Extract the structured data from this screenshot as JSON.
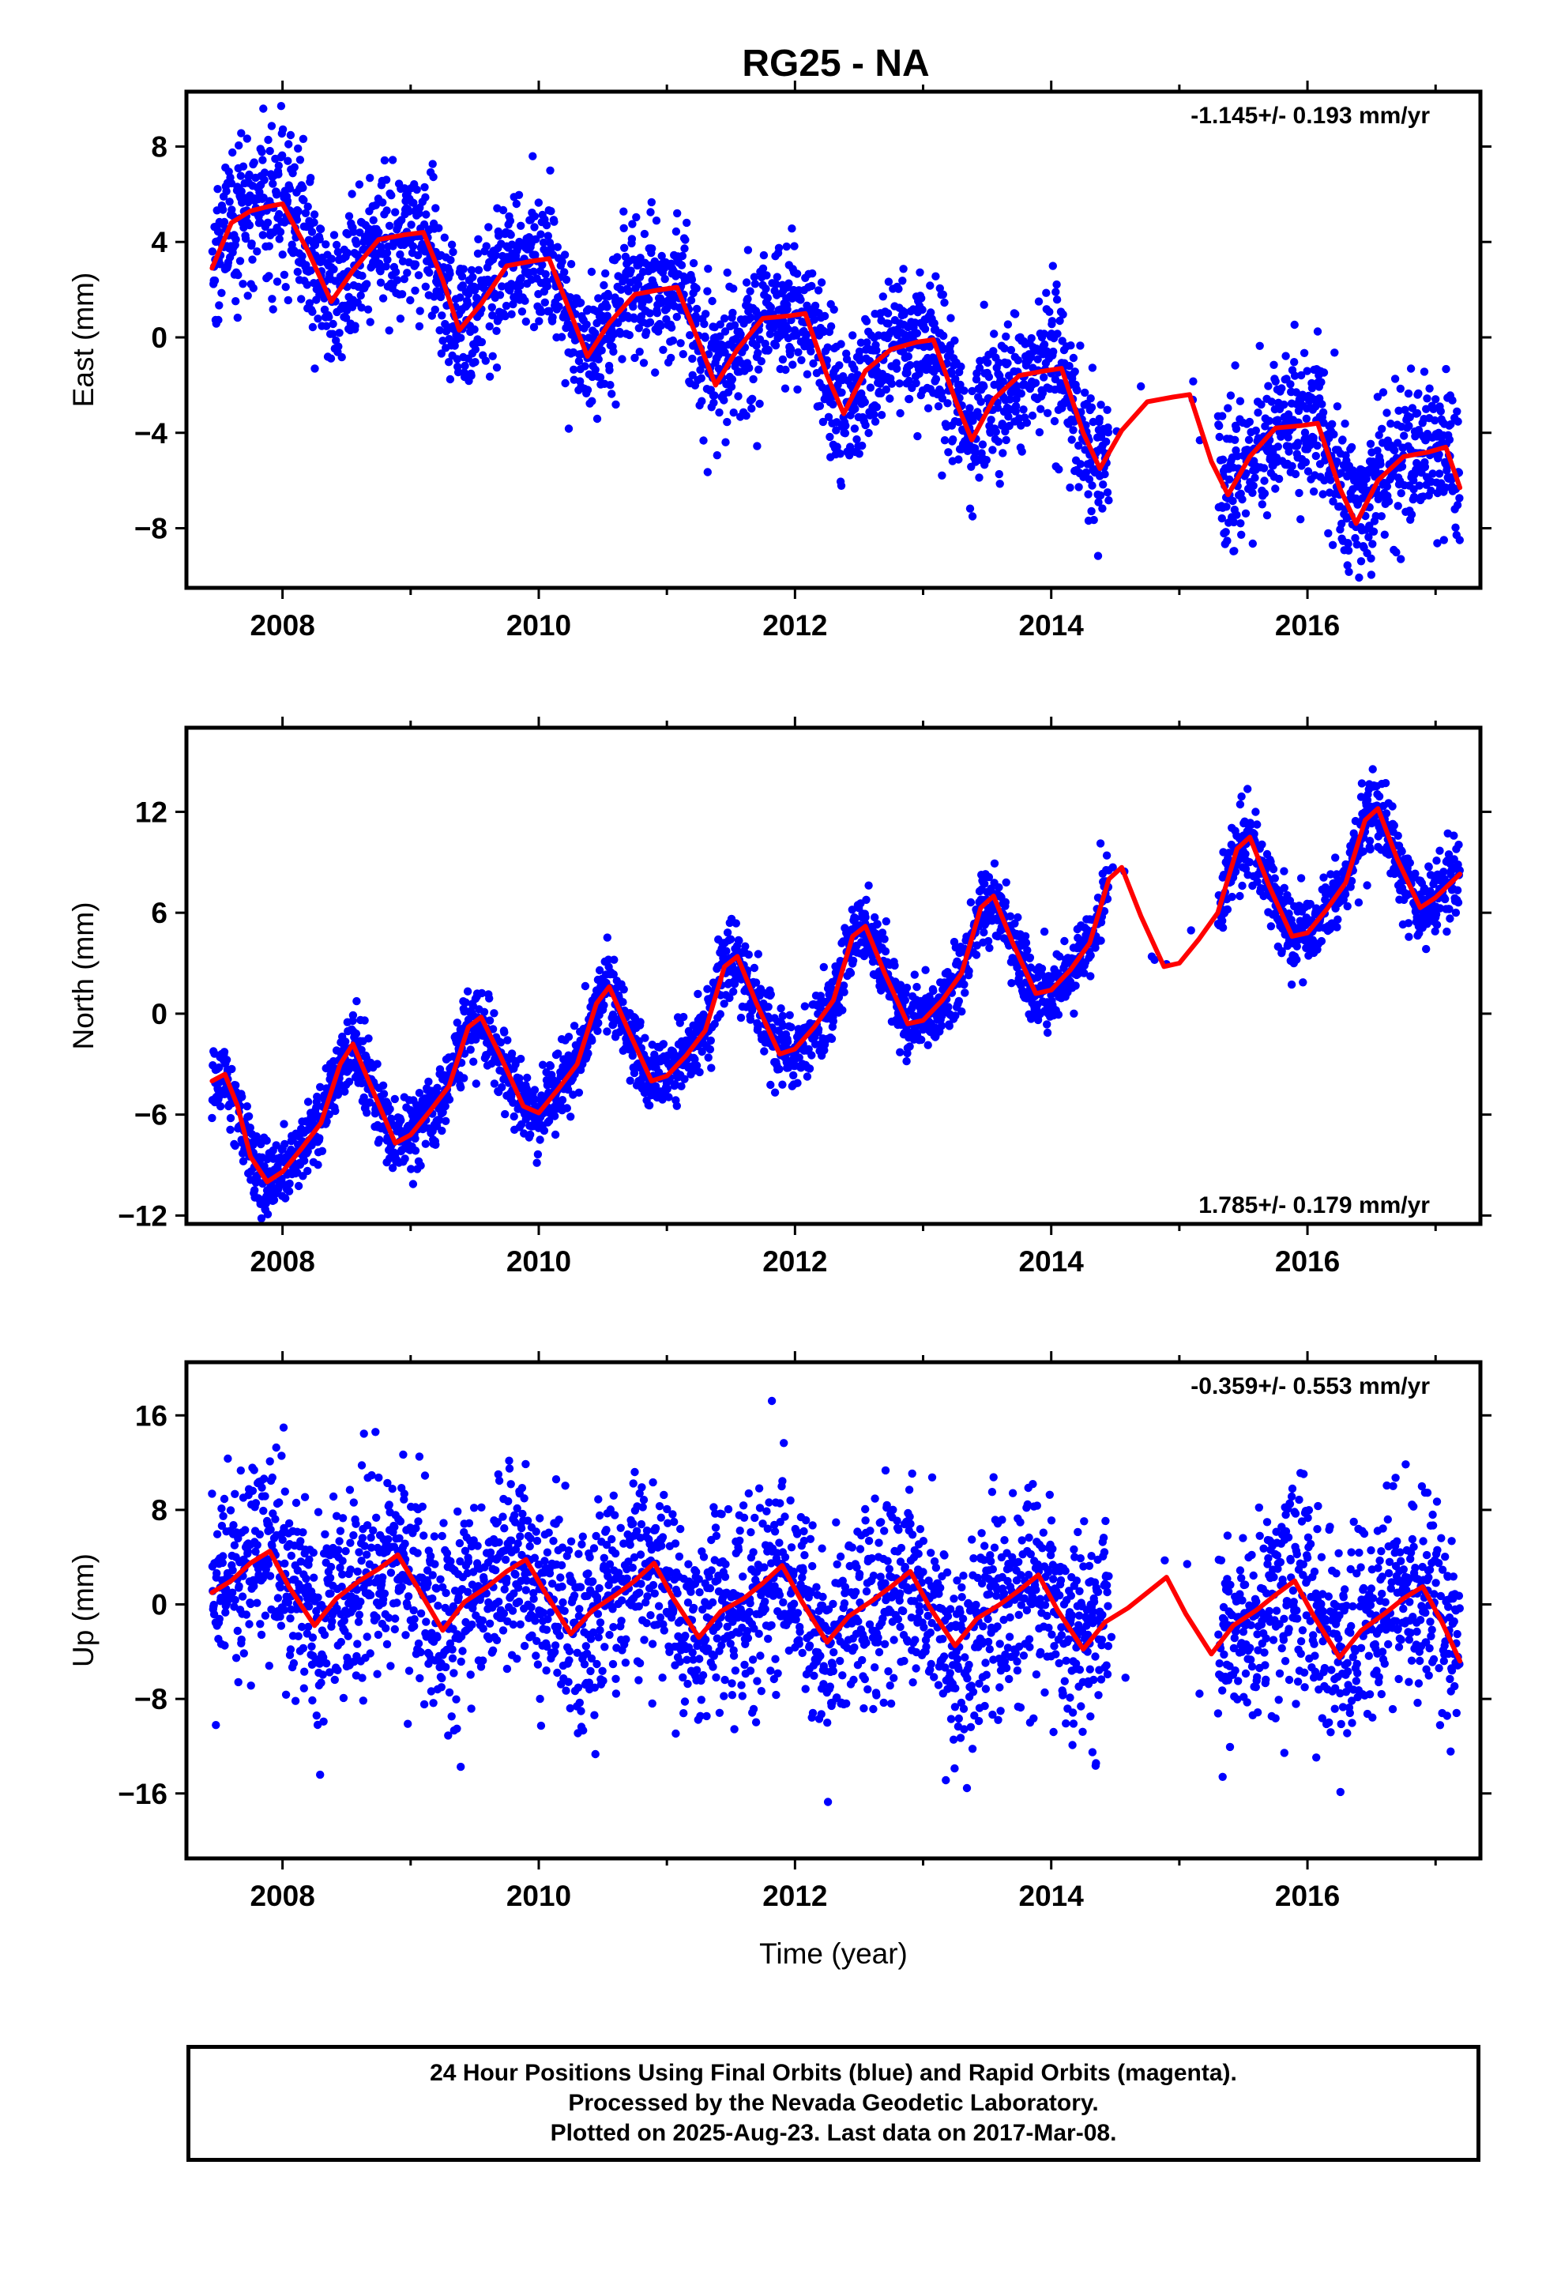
{
  "figure": {
    "title": "RG25 - NA",
    "xlabel": "Time (year)",
    "footer": [
      "24 Hour Positions Using Final Orbits (blue) and Rapid Orbits (magenta).",
      "Processed by the Nevada Geodetic Laboratory.",
      "Plotted on 2025-Aug-23. Last data on 2017-Mar-08."
    ]
  },
  "colors": {
    "points": "#0000ff",
    "model": "#ff0000",
    "frame": "#000000"
  },
  "chart_data": [
    {
      "type": "scatter",
      "component": "east",
      "ylabel": "East (mm)",
      "rate_text": "-1.145+/- 0.193 mm/yr",
      "rate_position": "top-right",
      "xlim": [
        2007.25,
        2017.35
      ],
      "ylim": [
        -10.5,
        10.3
      ],
      "x_ticks": [
        2008,
        2010,
        2012,
        2014,
        2016
      ],
      "x_tick_labels": [
        "2008",
        "2010",
        "2012",
        "2014",
        "2016"
      ],
      "y_ticks": [
        -8,
        -4,
        0,
        4,
        8
      ],
      "y_tick_labels": [
        "−8",
        "−4",
        "0",
        "4",
        "8"
      ],
      "grid": false,
      "data_span": [
        2007.45,
        2017.19
      ],
      "gaps": [
        [
          2014.45,
          2015.3
        ]
      ],
      "series": [
        {
          "role": "model",
          "x": [
            2007.45,
            2007.6,
            2007.75,
            2007.9,
            2008.0,
            2008.2,
            2008.38,
            2008.55,
            2008.75,
            2008.95,
            2009.1,
            2009.25,
            2009.38,
            2009.55,
            2009.75,
            2009.95,
            2010.08,
            2010.25,
            2010.38,
            2010.55,
            2010.75,
            2010.95,
            2011.08,
            2011.25,
            2011.38,
            2011.55,
            2011.75,
            2011.95,
            2012.08,
            2012.25,
            2012.38,
            2012.55,
            2012.75,
            2012.95,
            2013.08,
            2013.25,
            2013.38,
            2013.55,
            2013.75,
            2013.95,
            2014.08,
            2014.25,
            2014.38,
            2014.55,
            2014.75,
            2014.95,
            2015.08,
            2015.25,
            2015.38,
            2015.55,
            2015.75,
            2015.95,
            2016.08,
            2016.25,
            2016.38,
            2016.55,
            2016.75,
            2016.95,
            2017.08,
            2017.19
          ],
          "y": [
            2.9,
            4.8,
            5.3,
            5.5,
            5.6,
            3.6,
            1.5,
            2.8,
            4.1,
            4.3,
            4.4,
            2.4,
            0.3,
            1.4,
            3.0,
            3.2,
            3.3,
            1.0,
            -0.8,
            0.6,
            1.8,
            2.0,
            2.1,
            -0.2,
            -2.0,
            -0.5,
            0.8,
            0.9,
            1.0,
            -1.6,
            -3.2,
            -1.4,
            -0.5,
            -0.2,
            -0.1,
            -2.6,
            -4.3,
            -2.6,
            -1.6,
            -1.4,
            -1.3,
            -4.0,
            -5.5,
            -3.9,
            -2.7,
            -2.5,
            -2.4,
            -5.2,
            -6.6,
            -5.0,
            -3.8,
            -3.7,
            -3.6,
            -6.3,
            -7.8,
            -6.0,
            -5.0,
            -4.8,
            -4.6,
            -6.3
          ]
        },
        {
          "role": "observations",
          "noise_mm": 1.5,
          "spacing_days": 1
        }
      ]
    },
    {
      "type": "scatter",
      "component": "north",
      "ylabel": "North (mm)",
      "rate_text": "1.785+/- 0.179 mm/yr",
      "rate_position": "bottom-right",
      "xlim": [
        2007.25,
        2017.35
      ],
      "ylim": [
        -12.5,
        17
      ],
      "x_ticks": [
        2008,
        2010,
        2012,
        2014,
        2016
      ],
      "x_tick_labels": [
        "2008",
        "2010",
        "2012",
        "2014",
        "2016"
      ],
      "y_ticks": [
        -12,
        -6,
        0,
        6,
        12
      ],
      "y_tick_labels": [
        "−12",
        "−6",
        "0",
        "6",
        "12"
      ],
      "grid": false,
      "data_span": [
        2007.45,
        2017.19
      ],
      "gaps": [
        [
          2014.45,
          2015.3
        ]
      ],
      "series": [
        {
          "role": "model",
          "x": [
            2007.45,
            2007.55,
            2007.65,
            2007.75,
            2007.88,
            2008.0,
            2008.15,
            2008.3,
            2008.45,
            2008.55,
            2008.7,
            2008.88,
            2009.0,
            2009.15,
            2009.3,
            2009.45,
            2009.55,
            2009.7,
            2009.88,
            2010.0,
            2010.15,
            2010.3,
            2010.45,
            2010.55,
            2010.7,
            2010.88,
            2011.0,
            2011.15,
            2011.3,
            2011.45,
            2011.55,
            2011.7,
            2011.88,
            2012.0,
            2012.15,
            2012.3,
            2012.45,
            2012.55,
            2012.7,
            2012.88,
            2013.0,
            2013.15,
            2013.3,
            2013.45,
            2013.55,
            2013.7,
            2013.88,
            2014.0,
            2014.15,
            2014.3,
            2014.45,
            2014.55,
            2014.7,
            2014.88,
            2015.0,
            2015.15,
            2015.3,
            2015.45,
            2015.55,
            2015.7,
            2015.88,
            2016.0,
            2016.15,
            2016.3,
            2016.45,
            2016.55,
            2016.7,
            2016.88,
            2017.0,
            2017.19
          ],
          "y": [
            -4.0,
            -3.6,
            -5.5,
            -8.5,
            -10.0,
            -9.4,
            -8.0,
            -6.5,
            -3.0,
            -1.8,
            -4.5,
            -7.7,
            -7.2,
            -5.8,
            -4.3,
            -0.8,
            -0.2,
            -2.5,
            -5.5,
            -5.9,
            -4.5,
            -3.0,
            0.6,
            1.6,
            -1.0,
            -4.0,
            -3.7,
            -2.5,
            -1.0,
            2.8,
            3.4,
            0.6,
            -2.4,
            -2.1,
            -0.8,
            0.8,
            4.6,
            5.2,
            2.4,
            -0.6,
            -0.4,
            0.8,
            2.4,
            6.3,
            7.0,
            4.2,
            1.2,
            1.4,
            2.6,
            4.2,
            8.0,
            8.7,
            5.8,
            2.8,
            3.0,
            4.4,
            6.0,
            9.8,
            10.5,
            7.6,
            4.6,
            4.8,
            6.2,
            7.8,
            11.5,
            12.2,
            9.2,
            6.3,
            6.9,
            8.3
          ]
        },
        {
          "role": "observations",
          "noise_mm": 1.1,
          "spacing_days": 1
        }
      ]
    },
    {
      "type": "scatter",
      "component": "up",
      "ylabel": "Up (mm)",
      "rate_text": "-0.359+/- 0.553 mm/yr",
      "rate_position": "top-right",
      "xlim": [
        2007.25,
        2017.35
      ],
      "ylim": [
        -21.5,
        20.5
      ],
      "x_ticks": [
        2008,
        2010,
        2012,
        2014,
        2016
      ],
      "x_tick_labels": [
        "2008",
        "2010",
        "2012",
        "2014",
        "2016"
      ],
      "y_ticks": [
        -16,
        -8,
        0,
        8,
        16
      ],
      "y_tick_labels": [
        "−16",
        "−8",
        "0",
        "8",
        "16"
      ],
      "grid": false,
      "data_span": [
        2007.45,
        2017.19
      ],
      "gaps": [
        [
          2014.45,
          2015.3
        ]
      ],
      "series": [
        {
          "role": "model",
          "x": [
            2007.45,
            2007.6,
            2007.75,
            2007.9,
            2008.05,
            2008.25,
            2008.42,
            2008.6,
            2008.75,
            2008.9,
            2009.05,
            2009.25,
            2009.42,
            2009.6,
            2009.75,
            2009.9,
            2010.05,
            2010.25,
            2010.42,
            2010.6,
            2010.75,
            2010.9,
            2011.05,
            2011.25,
            2011.42,
            2011.6,
            2011.75,
            2011.9,
            2012.05,
            2012.25,
            2012.42,
            2012.6,
            2012.75,
            2012.9,
            2013.05,
            2013.25,
            2013.42,
            2013.6,
            2013.75,
            2013.9,
            2014.05,
            2014.25,
            2014.42,
            2014.6,
            2014.75,
            2014.9,
            2015.05,
            2015.25,
            2015.42,
            2015.6,
            2015.75,
            2015.9,
            2016.05,
            2016.25,
            2016.42,
            2016.6,
            2016.75,
            2016.9,
            2017.05,
            2017.19
          ],
          "y": [
            1.0,
            2.0,
            3.5,
            4.5,
            1.5,
            -1.8,
            0.5,
            2.0,
            3.0,
            4.2,
            1.5,
            -2.2,
            0.2,
            1.5,
            2.8,
            3.8,
            1.0,
            -2.5,
            -0.5,
            0.8,
            2.0,
            3.5,
            0.5,
            -2.8,
            -0.6,
            0.5,
            1.8,
            3.3,
            0.3,
            -3.2,
            -1.0,
            0.3,
            1.5,
            2.8,
            -0.2,
            -3.5,
            -1.2,
            0.0,
            1.2,
            2.5,
            -0.5,
            -3.8,
            -1.5,
            -0.3,
            1.0,
            2.3,
            -0.8,
            -4.2,
            -1.8,
            -0.5,
            0.8,
            2.0,
            -1.0,
            -4.5,
            -2.2,
            -0.8,
            0.5,
            1.5,
            -1.5,
            -4.8
          ]
        },
        {
          "role": "observations",
          "noise_mm": 4.2,
          "spacing_days": 1
        }
      ]
    }
  ]
}
